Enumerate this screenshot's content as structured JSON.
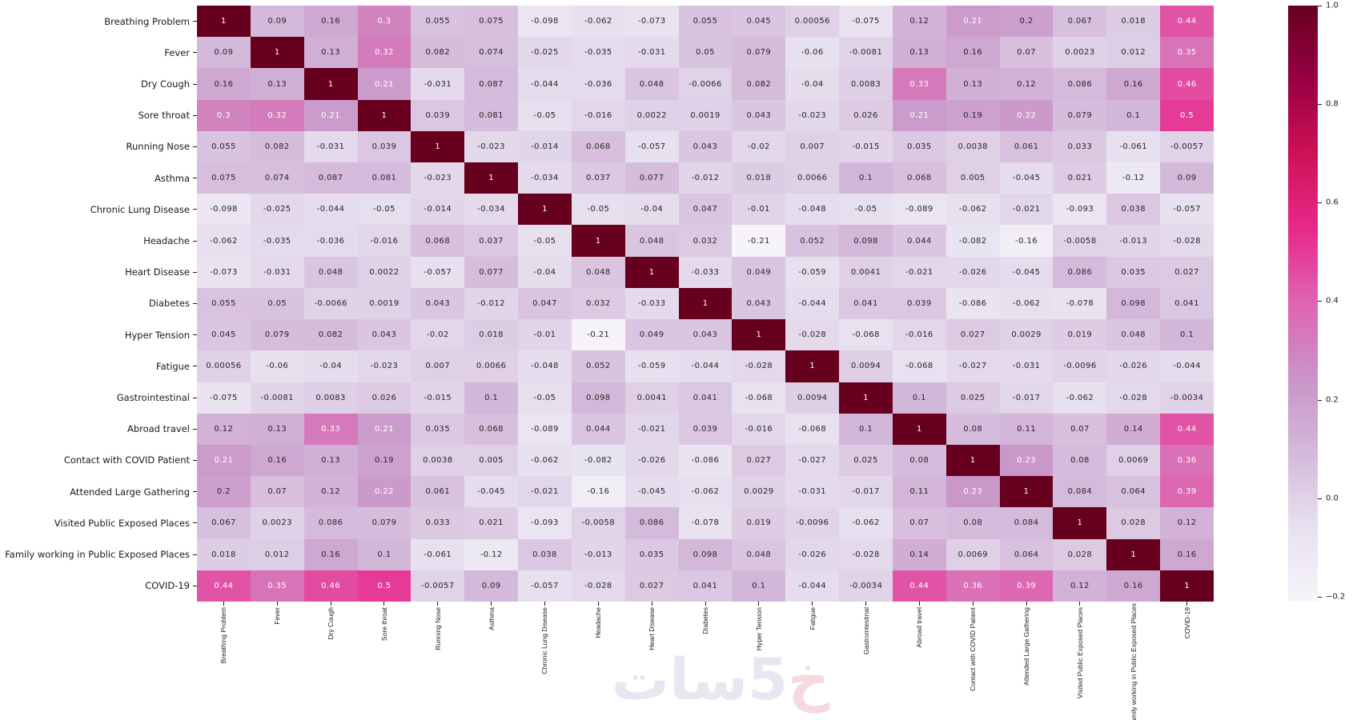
{
  "watermark": {
    "first": "خ",
    "rest": "5سات"
  },
  "chart_data": {
    "type": "heatmap",
    "title": "",
    "categories": [
      "Breathing Problem",
      "Fever",
      "Dry Cough",
      "Sore throat",
      "Running Nose",
      "Asthma",
      "Chronic Lung Disease",
      "Headache",
      "Heart Disease",
      "Diabetes",
      "Hyper Tension",
      "Fatigue",
      "Gastrointestinal",
      "Abroad travel",
      "Contact with COVID Patient",
      "Attended Large Gathering",
      "Visited Public Exposed Places",
      "Family working in Public Exposed Places",
      "COVID-19"
    ],
    "matrix": [
      [
        1,
        0.09,
        0.16,
        0.3,
        0.055,
        0.075,
        -0.098,
        -0.062,
        -0.073,
        0.055,
        0.045,
        0.00056,
        -0.075,
        0.12,
        0.21,
        0.2,
        0.067,
        0.018,
        0.44
      ],
      [
        0.09,
        1,
        0.13,
        0.32,
        0.082,
        0.074,
        -0.025,
        -0.035,
        -0.031,
        0.05,
        0.079,
        -0.06,
        -0.0081,
        0.13,
        0.16,
        0.07,
        0.0023,
        0.012,
        0.35
      ],
      [
        0.16,
        0.13,
        1,
        0.21,
        -0.031,
        0.087,
        -0.044,
        -0.036,
        0.048,
        -0.0066,
        0.082,
        -0.04,
        0.0083,
        0.33,
        0.13,
        0.12,
        0.086,
        0.16,
        0.46
      ],
      [
        0.3,
        0.32,
        0.21,
        1,
        0.039,
        0.081,
        -0.05,
        -0.016,
        0.0022,
        0.0019,
        0.043,
        -0.023,
        0.026,
        0.21,
        0.19,
        0.22,
        0.079,
        0.1,
        0.5
      ],
      [
        0.055,
        0.082,
        -0.031,
        0.039,
        1,
        -0.023,
        -0.014,
        0.068,
        -0.057,
        0.043,
        -0.02,
        0.007,
        -0.015,
        0.035,
        0.0038,
        0.061,
        0.033,
        -0.061,
        -0.0057
      ],
      [
        0.075,
        0.074,
        0.087,
        0.081,
        -0.023,
        1,
        -0.034,
        0.037,
        0.077,
        -0.012,
        0.018,
        0.0066,
        0.1,
        0.068,
        0.005,
        -0.045,
        0.021,
        -0.12,
        0.09
      ],
      [
        -0.098,
        -0.025,
        -0.044,
        -0.05,
        -0.014,
        -0.034,
        1,
        -0.05,
        -0.04,
        0.047,
        -0.01,
        -0.048,
        -0.05,
        -0.089,
        -0.062,
        -0.021,
        -0.093,
        0.038,
        -0.057
      ],
      [
        -0.062,
        -0.035,
        -0.036,
        -0.016,
        0.068,
        0.037,
        -0.05,
        1,
        0.048,
        0.032,
        -0.21,
        0.052,
        0.098,
        0.044,
        -0.082,
        -0.16,
        -0.0058,
        -0.013,
        -0.028
      ],
      [
        -0.073,
        -0.031,
        0.048,
        0.0022,
        -0.057,
        0.077,
        -0.04,
        0.048,
        1,
        -0.033,
        0.049,
        -0.059,
        0.0041,
        -0.021,
        -0.026,
        -0.045,
        0.086,
        0.035,
        0.027
      ],
      [
        0.055,
        0.05,
        -0.0066,
        0.0019,
        0.043,
        -0.012,
        0.047,
        0.032,
        -0.033,
        1,
        0.043,
        -0.044,
        0.041,
        0.039,
        -0.086,
        -0.062,
        -0.078,
        0.098,
        0.041
      ],
      [
        0.045,
        0.079,
        0.082,
        0.043,
        -0.02,
        0.018,
        -0.01,
        -0.21,
        0.049,
        0.043,
        1,
        -0.028,
        -0.068,
        -0.016,
        0.027,
        0.0029,
        0.019,
        0.048,
        0.1
      ],
      [
        0.00056,
        -0.06,
        -0.04,
        -0.023,
        0.007,
        0.0066,
        -0.048,
        0.052,
        -0.059,
        -0.044,
        -0.028,
        1,
        0.0094,
        -0.068,
        -0.027,
        -0.031,
        -0.0096,
        -0.026,
        -0.044
      ],
      [
        -0.075,
        -0.0081,
        0.0083,
        0.026,
        -0.015,
        0.1,
        -0.05,
        0.098,
        0.0041,
        0.041,
        -0.068,
        0.0094,
        1,
        0.1,
        0.025,
        -0.017,
        -0.062,
        -0.028,
        -0.0034
      ],
      [
        0.12,
        0.13,
        0.33,
        0.21,
        0.035,
        0.068,
        -0.089,
        0.044,
        -0.021,
        0.039,
        -0.016,
        -0.068,
        0.1,
        1,
        0.08,
        0.11,
        0.07,
        0.14,
        0.44
      ],
      [
        0.21,
        0.16,
        0.13,
        0.19,
        0.0038,
        0.005,
        -0.062,
        -0.082,
        -0.026,
        -0.086,
        0.027,
        -0.027,
        0.025,
        0.08,
        1,
        0.23,
        0.08,
        0.0069,
        0.36
      ],
      [
        0.2,
        0.07,
        0.12,
        0.22,
        0.061,
        -0.045,
        -0.021,
        -0.16,
        -0.045,
        -0.062,
        0.0029,
        -0.031,
        -0.017,
        0.11,
        0.23,
        1,
        0.084,
        0.064,
        0.39
      ],
      [
        0.067,
        0.0023,
        0.086,
        0.079,
        0.033,
        0.021,
        -0.093,
        -0.0058,
        0.086,
        -0.078,
        0.019,
        -0.0096,
        -0.062,
        0.07,
        0.08,
        0.084,
        1,
        0.028,
        0.12
      ],
      [
        0.018,
        0.012,
        0.16,
        0.1,
        -0.061,
        -0.12,
        0.038,
        -0.013,
        0.035,
        0.098,
        0.048,
        -0.026,
        -0.028,
        0.14,
        0.0069,
        0.064,
        0.028,
        1,
        0.16
      ],
      [
        0.44,
        0.35,
        0.46,
        0.5,
        -0.0057,
        0.09,
        -0.057,
        -0.028,
        0.027,
        0.041,
        0.1,
        -0.044,
        -0.0034,
        0.44,
        0.36,
        0.39,
        0.12,
        0.16,
        1
      ]
    ],
    "vmin": -0.21,
    "vmax": 1.0,
    "annotation_format": ".2g",
    "grid": false,
    "colormap": {
      "name": "PuRd",
      "stops": [
        "#f7f4f9",
        "#e7e1ef",
        "#d4b9da",
        "#c994c7",
        "#df65b0",
        "#e7298a",
        "#ce1256",
        "#980043",
        "#67001f"
      ]
    },
    "colorbar": {
      "position": "right",
      "ticks": [
        {
          "value": 1.0,
          "label": "1.0"
        },
        {
          "value": 0.8,
          "label": "0.8"
        },
        {
          "value": 0.6,
          "label": "0.6"
        },
        {
          "value": 0.4,
          "label": "0.4"
        },
        {
          "value": 0.2,
          "label": "0.2"
        },
        {
          "value": 0.0,
          "label": "0.0"
        },
        {
          "value": -0.2,
          "label": "−0.2"
        }
      ]
    }
  }
}
